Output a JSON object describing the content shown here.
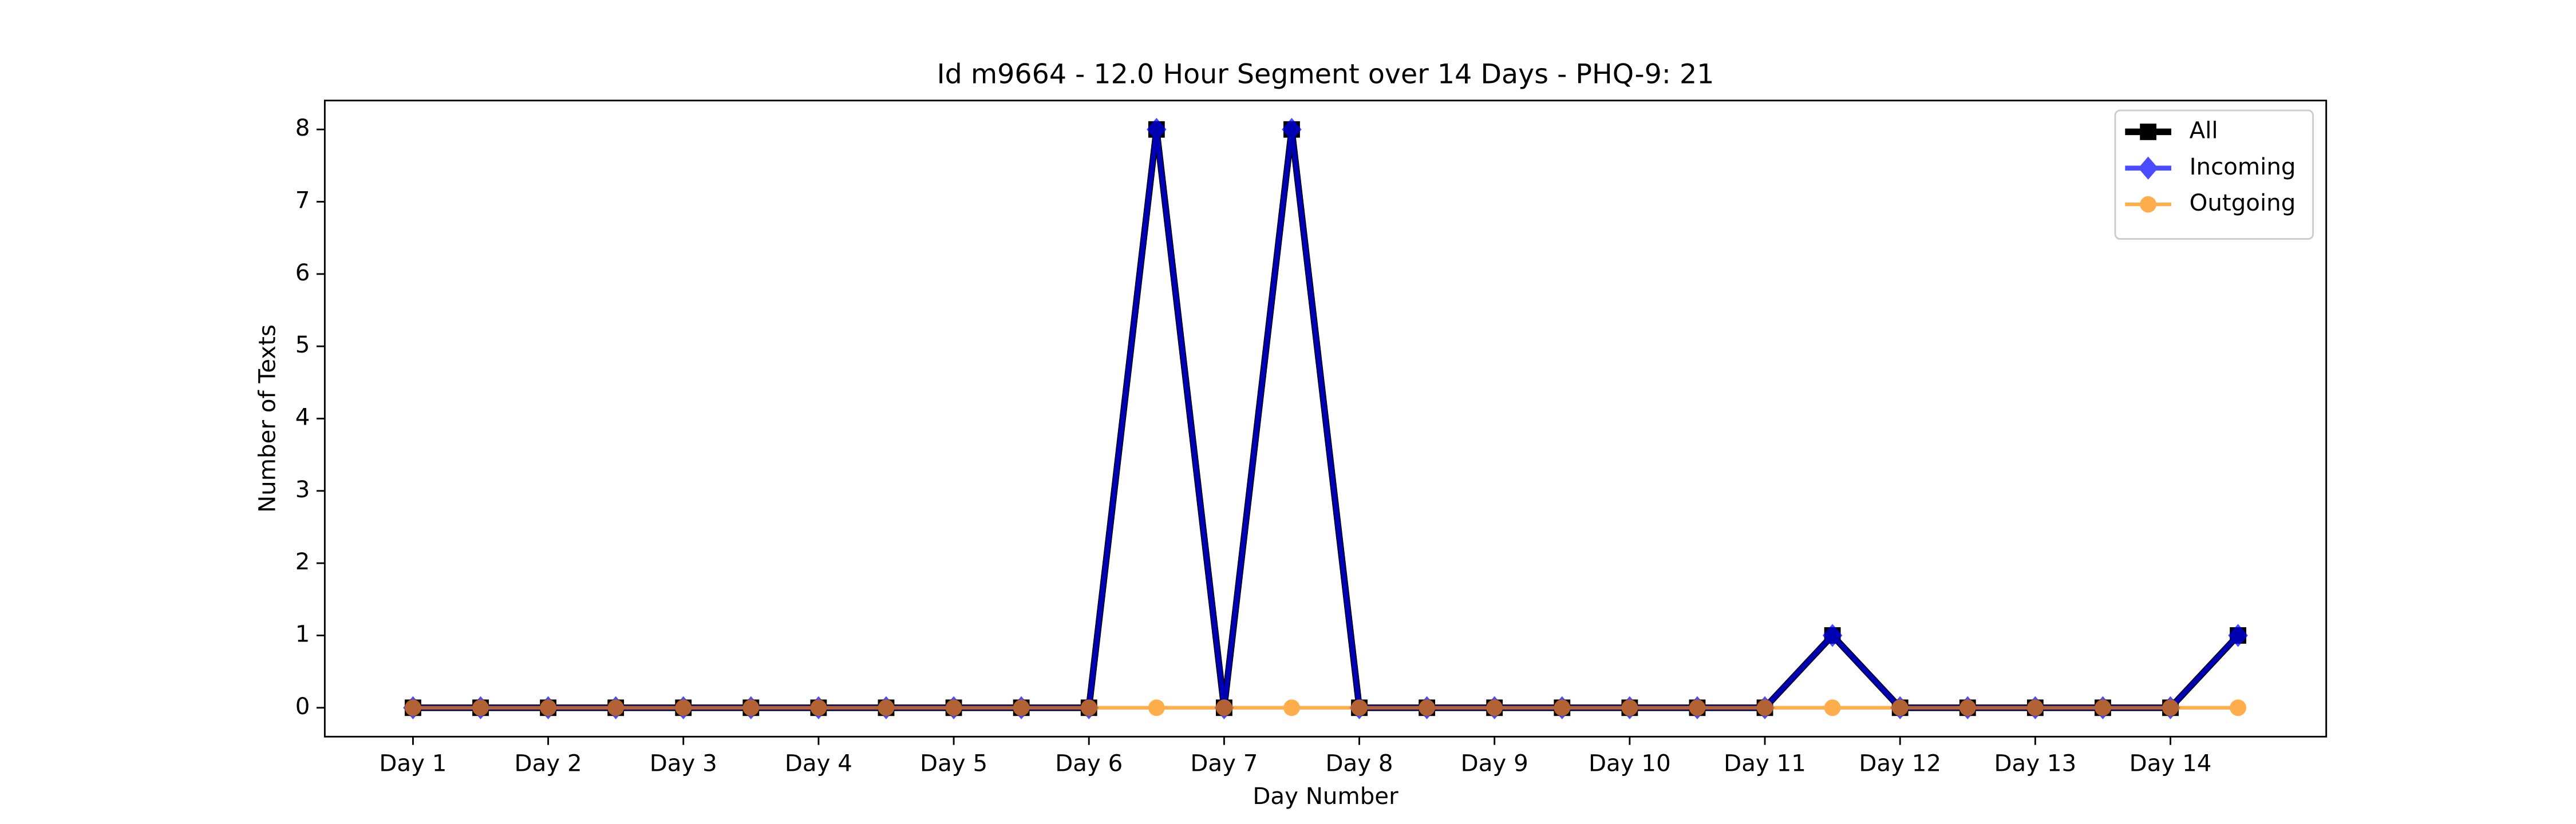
{
  "chart_data": {
    "type": "line",
    "title": "Id m9664 - 12.0 Hour Segment over 14 Days - PHQ-9: 21",
    "xlabel": "Day Number",
    "ylabel": "Number of Texts",
    "categories": [
      "Day 1",
      null,
      "Day 2",
      null,
      "Day 3",
      null,
      "Day 4",
      null,
      "Day 5",
      null,
      "Day 6",
      null,
      "Day 7",
      null,
      "Day 8",
      null,
      "Day 9",
      null,
      "Day 10",
      null,
      "Day 11",
      null,
      "Day 12",
      null,
      "Day 13",
      null,
      "Day 14",
      null
    ],
    "series": [
      {
        "name": "All",
        "color": "#000000",
        "marker": "square",
        "values": [
          0,
          0,
          0,
          0,
          0,
          0,
          0,
          0,
          0,
          0,
          0,
          8,
          0,
          8,
          0,
          0,
          0,
          0,
          0,
          0,
          0,
          1,
          0,
          0,
          0,
          0,
          0,
          1
        ]
      },
      {
        "name": "Incoming",
        "color": "#0000ff",
        "marker": "diamond",
        "values": [
          0,
          0,
          0,
          0,
          0,
          0,
          0,
          0,
          0,
          0,
          0,
          8,
          0,
          8,
          0,
          0,
          0,
          0,
          0,
          0,
          0,
          1,
          0,
          0,
          0,
          0,
          0,
          1
        ]
      },
      {
        "name": "Outgoing",
        "color": "#ff8c00",
        "marker": "circle",
        "values": [
          0,
          0,
          0,
          0,
          0,
          0,
          0,
          0,
          0,
          0,
          0,
          0,
          0,
          0,
          0,
          0,
          0,
          0,
          0,
          0,
          0,
          0,
          0,
          0,
          0,
          0,
          0,
          0
        ]
      }
    ],
    "ylim": [
      -0.4,
      8.4
    ],
    "yticks": [
      0,
      1,
      2,
      3,
      4,
      5,
      6,
      7,
      8
    ],
    "grid": false,
    "legend": "upper right"
  }
}
